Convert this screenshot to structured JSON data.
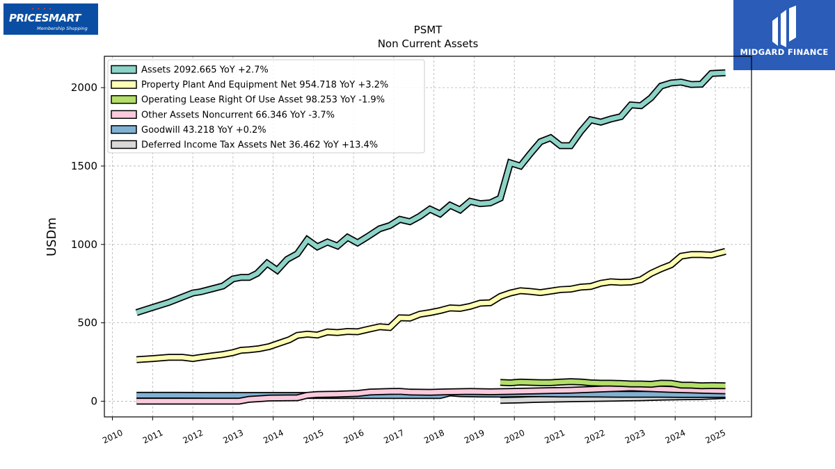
{
  "logos": {
    "left": {
      "text": "PRICESMART",
      "tagline": "Membership Shopping",
      "color": "#0a4ea3"
    },
    "right": {
      "text": "MIDGARD FINANCE",
      "color": "#2a5cb8"
    }
  },
  "chart_data": {
    "type": "line",
    "title": "PSMT",
    "subtitle": "Non Current  Assets",
    "ylabel": "USDm",
    "xlabel": "",
    "xlim": [
      2009.8,
      2025.9
    ],
    "ylim": [
      -100,
      2200
    ],
    "yticks": [
      0,
      500,
      1000,
      1500,
      2000
    ],
    "xticks": [
      "2010",
      "2011",
      "2012",
      "2013",
      "2014",
      "2015",
      "2016",
      "2017",
      "2018",
      "2019",
      "2020",
      "2021",
      "2022",
      "2023",
      "2024",
      "2025"
    ],
    "grid": true,
    "legend_position": "top-left",
    "series": [
      {
        "name": "Assets",
        "legend": "Assets  2092.665 YoY +2.7%",
        "color": "#8dd3c7",
        "points": [
          [
            2010.6,
            565
          ],
          [
            2011.0,
            598
          ],
          [
            2011.4,
            630
          ],
          [
            2011.75,
            665
          ],
          [
            2012.0,
            690
          ],
          [
            2012.2,
            698
          ],
          [
            2012.5,
            718
          ],
          [
            2012.75,
            735
          ],
          [
            2013.0,
            780
          ],
          [
            2013.2,
            790
          ],
          [
            2013.4,
            790
          ],
          [
            2013.6,
            815
          ],
          [
            2013.85,
            880
          ],
          [
            2014.1,
            835
          ],
          [
            2014.35,
            905
          ],
          [
            2014.6,
            940
          ],
          [
            2014.85,
            1030
          ],
          [
            2015.1,
            985
          ],
          [
            2015.35,
            1015
          ],
          [
            2015.6,
            990
          ],
          [
            2015.85,
            1045
          ],
          [
            2016.1,
            1010
          ],
          [
            2016.35,
            1050
          ],
          [
            2016.65,
            1100
          ],
          [
            2016.9,
            1120
          ],
          [
            2017.15,
            1160
          ],
          [
            2017.4,
            1145
          ],
          [
            2017.65,
            1180
          ],
          [
            2017.9,
            1225
          ],
          [
            2018.15,
            1195
          ],
          [
            2018.4,
            1250
          ],
          [
            2018.65,
            1220
          ],
          [
            2018.9,
            1275
          ],
          [
            2019.15,
            1260
          ],
          [
            2019.4,
            1265
          ],
          [
            2019.65,
            1295
          ],
          [
            2019.9,
            1520
          ],
          [
            2020.15,
            1500
          ],
          [
            2020.4,
            1580
          ],
          [
            2020.65,
            1655
          ],
          [
            2020.9,
            1680
          ],
          [
            2021.15,
            1630
          ],
          [
            2021.4,
            1630
          ],
          [
            2021.65,
            1720
          ],
          [
            2021.9,
            1795
          ],
          [
            2022.15,
            1780
          ],
          [
            2022.4,
            1800
          ],
          [
            2022.65,
            1815
          ],
          [
            2022.9,
            1890
          ],
          [
            2023.15,
            1885
          ],
          [
            2023.4,
            1935
          ],
          [
            2023.65,
            2010
          ],
          [
            2023.9,
            2030
          ],
          [
            2024.15,
            2035
          ],
          [
            2024.4,
            2020
          ],
          [
            2024.65,
            2022
          ],
          [
            2024.9,
            2090
          ],
          [
            2025.25,
            2095
          ]
        ]
      },
      {
        "name": "Property Plant And Equipment Net",
        "legend": "Property Plant And Equipment Net  954.718 YoY +3.2%",
        "color": "#ffffb3",
        "points": [
          [
            2010.6,
            265
          ],
          [
            2011.0,
            272
          ],
          [
            2011.4,
            280
          ],
          [
            2011.75,
            280
          ],
          [
            2012.0,
            272
          ],
          [
            2012.2,
            280
          ],
          [
            2012.5,
            290
          ],
          [
            2012.75,
            298
          ],
          [
            2013.0,
            310
          ],
          [
            2013.2,
            325
          ],
          [
            2013.4,
            328
          ],
          [
            2013.65,
            335
          ],
          [
            2013.9,
            348
          ],
          [
            2014.15,
            370
          ],
          [
            2014.4,
            392
          ],
          [
            2014.6,
            420
          ],
          [
            2014.85,
            428
          ],
          [
            2015.1,
            422
          ],
          [
            2015.35,
            442
          ],
          [
            2015.6,
            438
          ],
          [
            2015.85,
            445
          ],
          [
            2016.1,
            443
          ],
          [
            2016.35,
            458
          ],
          [
            2016.65,
            475
          ],
          [
            2016.9,
            470
          ],
          [
            2017.15,
            532
          ],
          [
            2017.4,
            530
          ],
          [
            2017.65,
            555
          ],
          [
            2017.9,
            565
          ],
          [
            2018.15,
            578
          ],
          [
            2018.4,
            595
          ],
          [
            2018.65,
            592
          ],
          [
            2018.9,
            605
          ],
          [
            2019.15,
            625
          ],
          [
            2019.4,
            628
          ],
          [
            2019.65,
            668
          ],
          [
            2019.9,
            690
          ],
          [
            2020.15,
            705
          ],
          [
            2020.4,
            700
          ],
          [
            2020.65,
            693
          ],
          [
            2020.9,
            702
          ],
          [
            2021.15,
            712
          ],
          [
            2021.4,
            715
          ],
          [
            2021.65,
            728
          ],
          [
            2021.9,
            732
          ],
          [
            2022.15,
            752
          ],
          [
            2022.4,
            762
          ],
          [
            2022.65,
            758
          ],
          [
            2022.9,
            760
          ],
          [
            2023.15,
            775
          ],
          [
            2023.4,
            815
          ],
          [
            2023.65,
            845
          ],
          [
            2023.9,
            870
          ],
          [
            2024.15,
            925
          ],
          [
            2024.4,
            935
          ],
          [
            2024.65,
            935
          ],
          [
            2024.9,
            932
          ],
          [
            2025.25,
            955
          ]
        ]
      },
      {
        "name": "Operating Lease Right Of Use Asset",
        "legend": "Operating Lease Right Of Use Asset  98.253 YoY -1.9%",
        "color": "#b3de69",
        "points": [
          [
            2019.65,
            120
          ],
          [
            2019.9,
            117
          ],
          [
            2020.15,
            122
          ],
          [
            2020.4,
            120
          ],
          [
            2020.65,
            118
          ],
          [
            2020.9,
            118
          ],
          [
            2021.15,
            122
          ],
          [
            2021.4,
            125
          ],
          [
            2021.65,
            123
          ],
          [
            2021.9,
            117
          ],
          [
            2022.15,
            115
          ],
          [
            2022.4,
            115
          ],
          [
            2022.65,
            113
          ],
          [
            2022.9,
            110
          ],
          [
            2023.15,
            110
          ],
          [
            2023.4,
            108
          ],
          [
            2023.65,
            115
          ],
          [
            2023.9,
            114
          ],
          [
            2024.15,
            103
          ],
          [
            2024.4,
            102
          ],
          [
            2024.65,
            98
          ],
          [
            2024.9,
            100
          ],
          [
            2025.25,
            98
          ]
        ]
      },
      {
        "name": "Other Assets Noncurrent",
        "legend": "Other Assets Noncurrent  66.346 YoY -3.7%",
        "color": "#f9c9dc",
        "points": [
          [
            2010.6,
            0
          ],
          [
            2011.5,
            0
          ],
          [
            2012.5,
            0
          ],
          [
            2013.0,
            0
          ],
          [
            2013.15,
            0
          ],
          [
            2013.4,
            12
          ],
          [
            2013.9,
            20
          ],
          [
            2014.6,
            22
          ],
          [
            2014.85,
            38
          ],
          [
            2015.1,
            43
          ],
          [
            2015.6,
            45
          ],
          [
            2016.1,
            50
          ],
          [
            2016.4,
            58
          ],
          [
            2016.9,
            62
          ],
          [
            2017.15,
            63
          ],
          [
            2017.4,
            58
          ],
          [
            2017.9,
            57
          ],
          [
            2018.4,
            60
          ],
          [
            2018.9,
            62
          ],
          [
            2019.4,
            60
          ],
          [
            2019.9,
            62
          ],
          [
            2020.4,
            65
          ],
          [
            2020.9,
            68
          ],
          [
            2021.4,
            70
          ],
          [
            2021.9,
            75
          ],
          [
            2022.4,
            80
          ],
          [
            2022.9,
            85
          ],
          [
            2023.4,
            80
          ],
          [
            2023.9,
            75
          ],
          [
            2024.4,
            72
          ],
          [
            2024.9,
            68
          ],
          [
            2025.25,
            66
          ]
        ]
      },
      {
        "name": "Goodwill",
        "legend": "Goodwill  43.218 YoY +0.2%",
        "color": "#80b1d3",
        "points": [
          [
            2010.6,
            38
          ],
          [
            2011.5,
            38
          ],
          [
            2012.5,
            37
          ],
          [
            2013.5,
            37
          ],
          [
            2014.5,
            37
          ],
          [
            2015.5,
            36
          ],
          [
            2016.5,
            36
          ],
          [
            2017.5,
            36
          ],
          [
            2018.15,
            36
          ],
          [
            2018.4,
            53
          ],
          [
            2018.65,
            48
          ],
          [
            2019.15,
            46
          ],
          [
            2019.65,
            45
          ],
          [
            2020.15,
            47
          ],
          [
            2020.65,
            47
          ],
          [
            2021.15,
            46
          ],
          [
            2021.65,
            46
          ],
          [
            2022.15,
            45
          ],
          [
            2022.65,
            44
          ],
          [
            2023.15,
            44
          ],
          [
            2023.65,
            44
          ],
          [
            2024.15,
            43
          ],
          [
            2024.65,
            43
          ],
          [
            2025.25,
            43
          ]
        ]
      },
      {
        "name": "Deferred Income Tax Assets Net",
        "legend": "Deferred Income Tax Assets Net  36.462 YoY +13.4%",
        "color": "#d9d9d9",
        "points": [
          [
            2019.65,
            5
          ],
          [
            2020.15,
            8
          ],
          [
            2020.65,
            12
          ],
          [
            2021.15,
            14
          ],
          [
            2021.65,
            16
          ],
          [
            2022.15,
            18
          ],
          [
            2022.65,
            20
          ],
          [
            2023.15,
            22
          ],
          [
            2023.65,
            26
          ],
          [
            2024.15,
            28
          ],
          [
            2024.65,
            30
          ],
          [
            2025.25,
            36
          ]
        ]
      }
    ]
  }
}
